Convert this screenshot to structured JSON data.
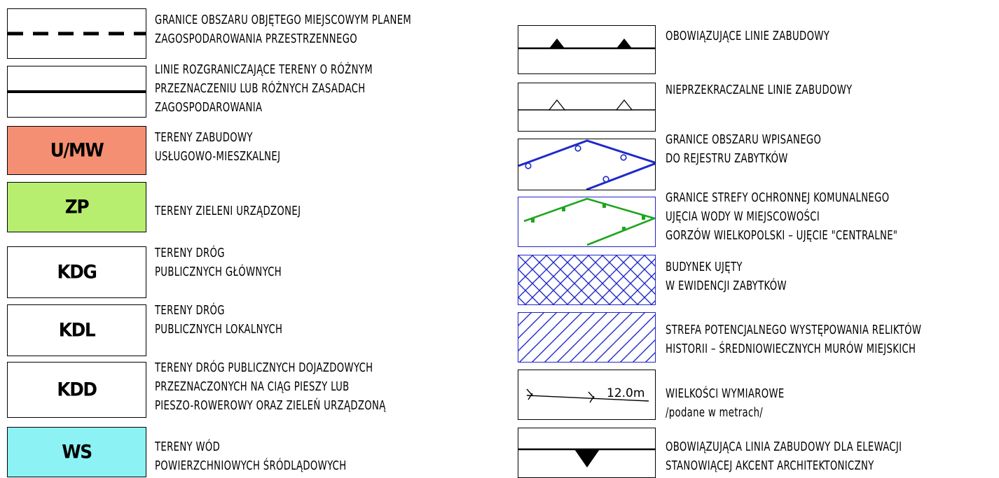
{
  "colors": {
    "umw": "#f58f73",
    "zp": "#b7ee70",
    "ws": "#8cf2f3",
    "blue": "#1f2ac8",
    "green": "#1fa61f"
  },
  "left": [
    {
      "code": "",
      "lines": [
        "GRANICE OBSZARU OBJĘTEGO MIEJSCOWYM PLANEM",
        "ZAGOSPODAROWANIA PRZESTRZENNEGO"
      ]
    },
    {
      "code": "",
      "lines": [
        "LINIE ROZGRANICZAJĄCE TERENY O RÓŻNYM",
        "PRZEZNACZENIU LUB RÓŻNYCH ZASADACH",
        "ZAGOSPODAROWANIA"
      ]
    },
    {
      "code": "U/MW",
      "lines": [
        "TERENY ZABUDOWY",
        "USŁUGOWO-MIESZKALNEJ"
      ]
    },
    {
      "code": "ZP",
      "lines": [
        "TERENY ZIELENI URZĄDZONEJ"
      ]
    },
    {
      "code": "KDG",
      "lines": [
        "TERENY DRÓG",
        "PUBLICZNYCH GŁÓWNYCH"
      ]
    },
    {
      "code": "KDL",
      "lines": [
        "TERENY DRÓG",
        "PUBLICZNYCH LOKALNYCH"
      ]
    },
    {
      "code": "KDD",
      "lines": [
        "TERENY DRÓG PUBLICZNYCH DOJAZDOWYCH",
        "PRZEZNACZONYCH NA CIĄG PIESZY LUB",
        "PIESZO-ROWEROWY ORAZ ZIELEŃ URZĄDZONĄ"
      ]
    },
    {
      "code": "WS",
      "lines": [
        "TERENY WÓD",
        "POWIERZCHNIOWYCH ŚRÓDLĄDOWYCH"
      ]
    }
  ],
  "right": [
    {
      "lines": [
        "OBOWIĄZUJĄCE LINIE ZABUDOWY"
      ]
    },
    {
      "lines": [
        "NIEPRZEKRACZALNE LINIE ZABUDOWY"
      ]
    },
    {
      "lines": [
        "GRANICE OBSZARU WPISANEGO",
        "DO REJESTRU ZABYTKÓW"
      ]
    },
    {
      "lines": [
        "GRANICE STREFY OCHRONNEJ KOMUNALNEGO",
        "UJĘCIA WODY W MIEJSCOWOŚCI",
        "GORZÓW WIELKOPOLSKI – UJĘCIE \"CENTRALNE\""
      ]
    },
    {
      "lines": [
        "BUDYNEK UJĘTY",
        "W EWIDENCJI ZABYTKÓW"
      ]
    },
    {
      "lines": [
        "STREFA POTENCJALNEGO WYSTĘPOWANIA RELIKTÓW",
        "HISTORII – ŚREDNIOWIECZNYCH MURÓW MIEJSKICH"
      ]
    },
    {
      "lines": [
        "WIELKOŚCI WYMIAROWE",
        "/podane w metrach/"
      ],
      "dimension_label": "12.0m"
    },
    {
      "lines": [
        "OBOWIĄZUJĄCA LINIA ZABUDOWY DLA ELEWACJI",
        "STANOWIĄCEJ AKCENT ARCHITEKTONICZNY"
      ]
    }
  ]
}
